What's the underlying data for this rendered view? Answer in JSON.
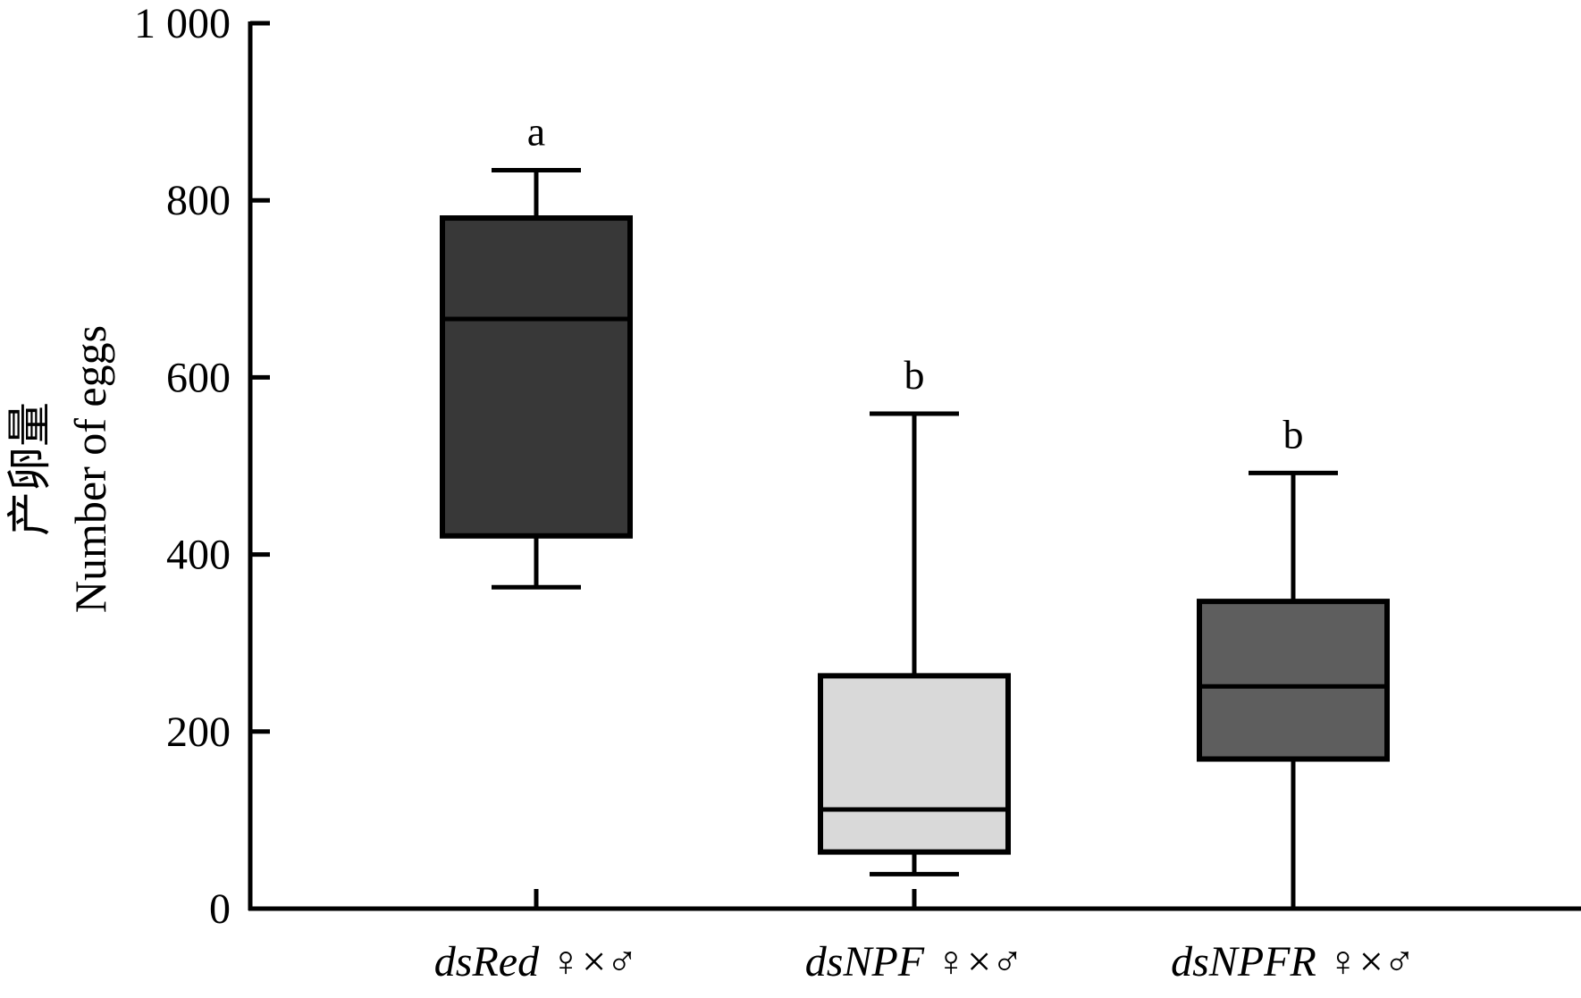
{
  "chart_data": {
    "type": "box",
    "ylabel": "产卵量",
    "ylabel_en": "Number of eggs",
    "xlabel": "",
    "ylim": [
      0,
      1000
    ],
    "yticks": [
      0,
      200,
      400,
      600,
      800,
      1000
    ],
    "ytick_labels": [
      "0",
      "200",
      "400",
      "600",
      "800",
      "1 000"
    ],
    "grid": false,
    "legend": "none",
    "categories": [
      {
        "name_italic": "dsRed",
        "suffix": "♀×♂"
      },
      {
        "name_italic": "dsNPF",
        "suffix": "♀×♂"
      },
      {
        "name_italic": "dsNPFR",
        "suffix": "♀×♂"
      }
    ],
    "boxes": [
      {
        "min": 363,
        "q1": 421,
        "median": 666,
        "q3": 780,
        "max": 834,
        "significance": "a",
        "color": "#383838"
      },
      {
        "min": 39,
        "q1": 64,
        "median": 112,
        "q3": 263,
        "max": 559,
        "significance": "b",
        "color": "#d9d9d9"
      },
      {
        "min": 0,
        "q1": 169,
        "median": 251,
        "q3": 347,
        "max": 492,
        "significance": "b",
        "color": "#5e5e5e"
      }
    ]
  }
}
